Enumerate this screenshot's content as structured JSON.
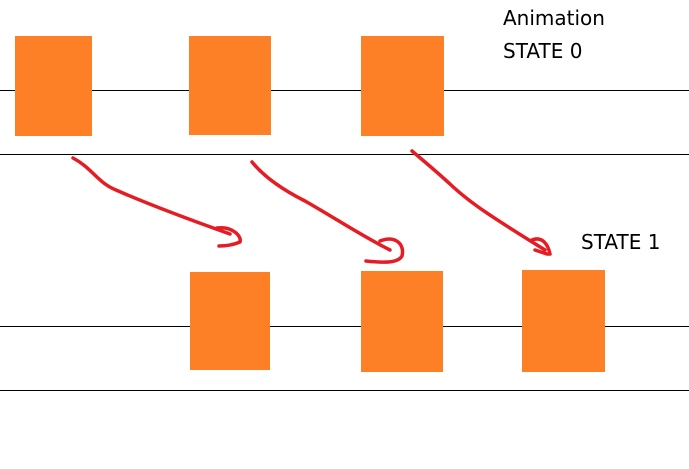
{
  "labels": {
    "state0_line1": "Animation",
    "state0_line2": "STATE 0",
    "state1": "STATE 1"
  },
  "colors": {
    "box": "#fd7f26",
    "arrow": "#e61c24",
    "line": "#000000"
  }
}
